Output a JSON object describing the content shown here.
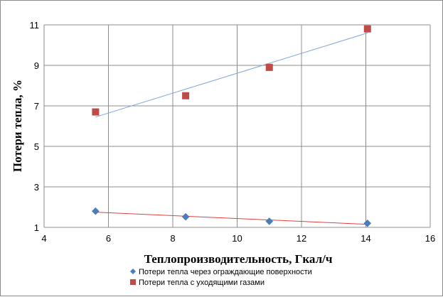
{
  "chart_data": {
    "type": "scatter",
    "title": "",
    "xlabel": "Теплопроизводительность,  Гкал/ч",
    "ylabel": "Потери тепла,  %",
    "xlim": [
      4,
      16
    ],
    "ylim": [
      1,
      11
    ],
    "x_ticks": [
      4,
      6,
      8,
      10,
      12,
      14,
      16
    ],
    "y_ticks": [
      1,
      3,
      5,
      7,
      9,
      11
    ],
    "grid": true,
    "legend_position": "bottom",
    "series": [
      {
        "name": "Потери тепла через ограждающие поверхности",
        "marker": "diamond",
        "color": "#4a7ebb",
        "trendline_color": "#e0403f",
        "x": [
          5.6,
          8.4,
          11.0,
          14.05
        ],
        "y": [
          1.8,
          1.52,
          1.3,
          1.2
        ],
        "trendline": {
          "x": [
            5.6,
            14.05
          ],
          "y": [
            1.75,
            1.15
          ]
        }
      },
      {
        "name": "Потери тепла  с уходящими  газами",
        "marker": "square",
        "color": "#be4b48",
        "trendline_color": "#7ea6d8",
        "x": [
          5.6,
          8.4,
          11.0,
          14.05
        ],
        "y": [
          6.7,
          7.5,
          8.9,
          10.8
        ],
        "trendline": {
          "x": [
            5.6,
            14.05
          ],
          "y": [
            6.45,
            10.6
          ]
        }
      }
    ]
  }
}
